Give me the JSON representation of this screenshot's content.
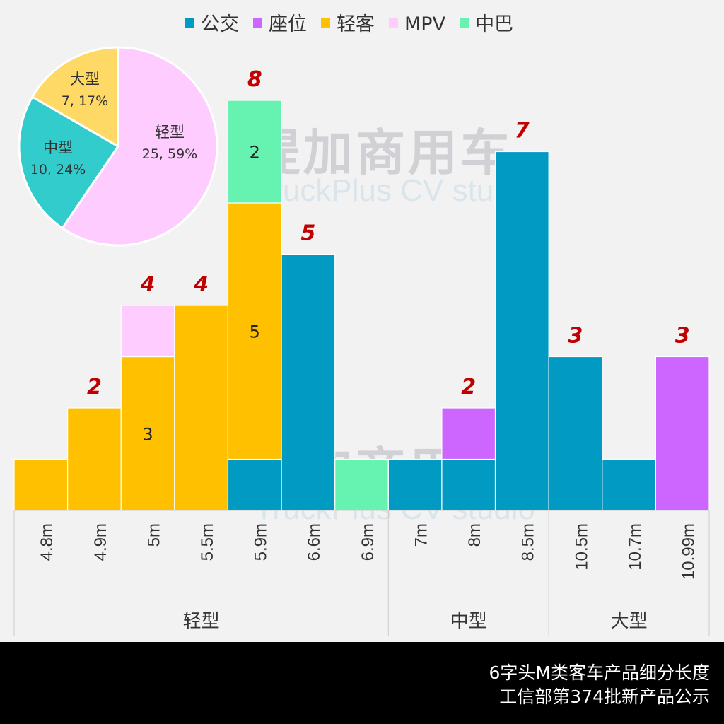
{
  "chart_data": {
    "type": "bar",
    "stacked": true,
    "title": "6字头M类客车产品细分长度",
    "subtitle": "工信部第374批新产品公示",
    "categories": [
      "4.8m",
      "4.9m",
      "5m",
      "5.5m",
      "5.9m",
      "6.6m",
      "6.9m",
      "7m",
      "8m",
      "8.5m",
      "10.5m",
      "10.7m",
      "10.99m"
    ],
    "groups": [
      {
        "label": "轻型",
        "count": 7
      },
      {
        "label": "中型",
        "count": 3
      },
      {
        "label": "大型",
        "count": 3
      }
    ],
    "series": [
      {
        "name": "公交",
        "color": "#009ac3",
        "values": [
          0,
          0,
          0,
          0,
          1,
          5,
          0,
          1,
          1,
          7,
          3,
          1,
          0
        ]
      },
      {
        "name": "座位",
        "color": "#cc66ff",
        "values": [
          0,
          0,
          0,
          0,
          0,
          0,
          0,
          0,
          1,
          0,
          0,
          0,
          3
        ]
      },
      {
        "name": "轻客",
        "color": "#ffc000",
        "values": [
          1,
          2,
          3,
          4,
          5,
          0,
          0,
          0,
          0,
          0,
          0,
          0,
          0
        ]
      },
      {
        "name": "MPV",
        "color": "#ffccff",
        "values": [
          0,
          0,
          1,
          0,
          0,
          0,
          0,
          0,
          0,
          0,
          0,
          0,
          0
        ]
      },
      {
        "name": "中巴",
        "color": "#66f2b0",
        "values": [
          0,
          0,
          0,
          0,
          2,
          0,
          1,
          0,
          0,
          0,
          0,
          0,
          0
        ]
      }
    ],
    "total_labels": [
      "",
      "2",
      "4",
      "4",
      "8",
      "5",
      "",
      "",
      "2",
      "7",
      "3",
      "",
      "3"
    ],
    "inner_labels": [
      {
        "category": "5m",
        "series": "轻客",
        "text": "3"
      },
      {
        "category": "5.9m",
        "series": "轻客",
        "text": "5"
      },
      {
        "category": "5.9m",
        "series": "中巴",
        "text": "2"
      }
    ],
    "legend_position": "top",
    "grid": false,
    "ylim": [
      0,
      8.5
    ],
    "pie": {
      "type": "pie",
      "slices": [
        {
          "label": "轻型",
          "value": 25,
          "percent": "59%",
          "color": "#ffccff"
        },
        {
          "label": "中型",
          "value": 10,
          "percent": "24%",
          "color": "#33cccc"
        },
        {
          "label": "大型",
          "value": 7,
          "percent": "17%",
          "color": "#ffd966"
        }
      ]
    }
  },
  "watermark": {
    "cn": "提加商用车",
    "en": "TruckPlus CV studio"
  }
}
